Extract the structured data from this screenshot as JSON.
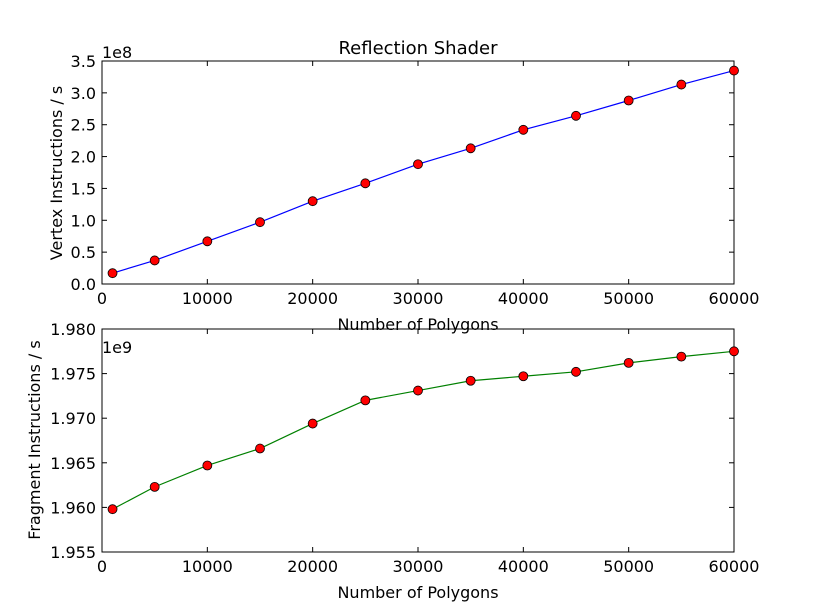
{
  "figure": {
    "title": "Reflection Shader"
  },
  "chart_data": [
    {
      "type": "line",
      "title": "Reflection Shader",
      "xlabel": "Number of Polygons",
      "ylabel": "Vertex Instructions / s",
      "offset_label": "1e8",
      "xlim": [
        0,
        60000
      ],
      "ylim": [
        0.0,
        3.5
      ],
      "xticks": [
        0,
        10000,
        20000,
        30000,
        40000,
        50000,
        60000
      ],
      "xtick_labels": [
        "0",
        "10000",
        "20000",
        "30000",
        "40000",
        "50000",
        "60000"
      ],
      "yticks": [
        0.0,
        0.5,
        1.0,
        1.5,
        2.0,
        2.5,
        3.0,
        3.5
      ],
      "ytick_labels": [
        "0.0",
        "0.5",
        "1.0",
        "1.5",
        "2.0",
        "2.5",
        "3.0",
        "3.5"
      ],
      "grid": false,
      "line_color": "#0000ff",
      "marker_color": "#ff0000",
      "series": [
        {
          "x": [
            1000,
            5000,
            10000,
            15000,
            20000,
            25000,
            30000,
            35000,
            40000,
            45000,
            50000,
            55000,
            60000
          ],
          "y": [
            0.17,
            0.37,
            0.67,
            0.97,
            1.3,
            1.58,
            1.88,
            2.13,
            2.42,
            2.64,
            2.88,
            3.13,
            3.35
          ]
        }
      ]
    },
    {
      "type": "line",
      "xlabel": "Number of Polygons",
      "ylabel": "Fragment Instructions / s",
      "offset_label": "1e9",
      "xlim": [
        0,
        60000
      ],
      "ylim": [
        1.955,
        1.98
      ],
      "xticks": [
        0,
        10000,
        20000,
        30000,
        40000,
        50000,
        60000
      ],
      "xtick_labels": [
        "0",
        "10000",
        "20000",
        "30000",
        "40000",
        "50000",
        "60000"
      ],
      "yticks": [
        1.955,
        1.96,
        1.965,
        1.97,
        1.975,
        1.98
      ],
      "ytick_labels": [
        "1.955",
        "1.960",
        "1.965",
        "1.970",
        "1.975",
        "1.980"
      ],
      "grid": false,
      "line_color": "#008000",
      "marker_color": "#ff0000",
      "series": [
        {
          "x": [
            1000,
            5000,
            10000,
            15000,
            20000,
            25000,
            30000,
            35000,
            40000,
            45000,
            50000,
            55000,
            60000
          ],
          "y": [
            1.9598,
            1.9623,
            1.9647,
            1.9666,
            1.9694,
            1.972,
            1.9731,
            1.9742,
            1.9747,
            1.9752,
            1.9762,
            1.9769,
            1.9775
          ]
        }
      ]
    }
  ]
}
